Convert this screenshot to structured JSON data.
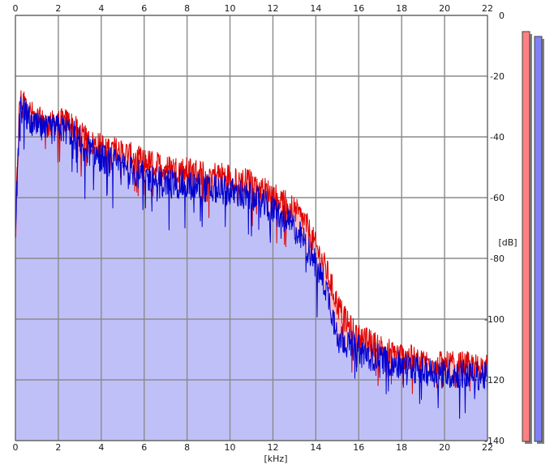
{
  "chart_data": {
    "type": "area",
    "xlabel": "[kHz]",
    "ylabel": "[dB]",
    "xlim": [
      0,
      22
    ],
    "ylim": [
      -140,
      0
    ],
    "x_ticks": [
      "0",
      "2",
      "4",
      "6",
      "8",
      "10",
      "12",
      "14",
      "16",
      "18",
      "20",
      "22"
    ],
    "y_ticks": [
      "0",
      "-20",
      "-40",
      "-60",
      "-80",
      "-100",
      "-120",
      "-140"
    ],
    "grid": true,
    "colors": {
      "red_line": "#e00000",
      "blue_line": "#0000d0",
      "blue_fill": "#c0c0f8",
      "red_fill": "#f8c0c0",
      "red_meter": "#ff8080",
      "blue_meter": "#8080f8"
    },
    "series": [
      {
        "color": "red",
        "x": [
          0,
          0.2,
          0.4,
          0.7,
          1.0,
          1.5,
          2.0,
          2.5,
          3.0,
          3.5,
          4.0,
          5.0,
          6.0,
          7.0,
          8.0,
          9.0,
          10.0,
          11.0,
          12.0,
          13.0,
          13.5,
          14.0,
          14.5,
          15.0,
          15.5,
          16.0,
          17.0,
          18.0,
          19.0,
          20.0,
          21.0,
          22.0
        ],
        "y": [
          -70,
          -28,
          -28,
          -32,
          -34,
          -36,
          -35,
          -35,
          -39,
          -42,
          -43,
          -45,
          -48,
          -50,
          -51,
          -52,
          -53,
          -55,
          -59,
          -64,
          -68,
          -76,
          -84,
          -95,
          -102,
          -106,
          -109,
          -112,
          -114,
          -115,
          -115,
          -116
        ]
      },
      {
        "color": "blue",
        "x": [
          0,
          0.2,
          0.4,
          0.7,
          1.0,
          1.5,
          2.0,
          2.5,
          3.0,
          3.5,
          4.0,
          5.0,
          6.0,
          7.0,
          8.0,
          9.0,
          10.0,
          11.0,
          12.0,
          13.0,
          13.5,
          14.0,
          14.5,
          15.0,
          15.5,
          16.0,
          17.0,
          18.0,
          19.0,
          20.0,
          21.0,
          22.0
        ],
        "y": [
          -72,
          -30,
          -32,
          -35,
          -37,
          -38,
          -37,
          -38,
          -41,
          -45,
          -47,
          -50,
          -53,
          -55,
          -56,
          -57,
          -58,
          -60,
          -64,
          -70,
          -75,
          -82,
          -90,
          -105,
          -108,
          -110,
          -113,
          -115,
          -117,
          -118,
          -118,
          -119
        ]
      }
    ]
  }
}
